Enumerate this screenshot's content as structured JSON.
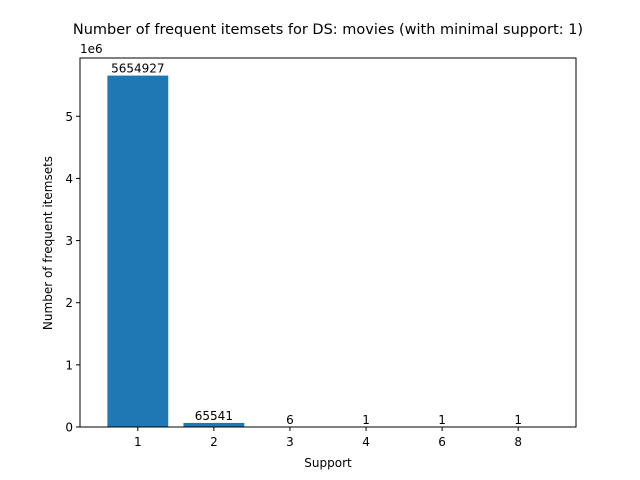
{
  "chart_data": {
    "type": "bar",
    "title": "Number of frequent itemsets for DS: movies (with minimal support: 1)",
    "xlabel": "Support",
    "ylabel": "Number of frequent itemsets",
    "y_offset_label": "1e6",
    "y_scale": 1000000,
    "categories": [
      "1",
      "2",
      "3",
      "4",
      "6",
      "8"
    ],
    "values": [
      5654927,
      65541,
      6,
      1,
      1,
      1
    ],
    "data_labels": [
      "5654927",
      "65541",
      "6",
      "1",
      "1",
      "1"
    ],
    "y_ticks": [
      0,
      1,
      2,
      3,
      4,
      5
    ],
    "ylim": [
      0,
      5937673
    ],
    "grid": false,
    "bar_color": "#1f77b4"
  }
}
